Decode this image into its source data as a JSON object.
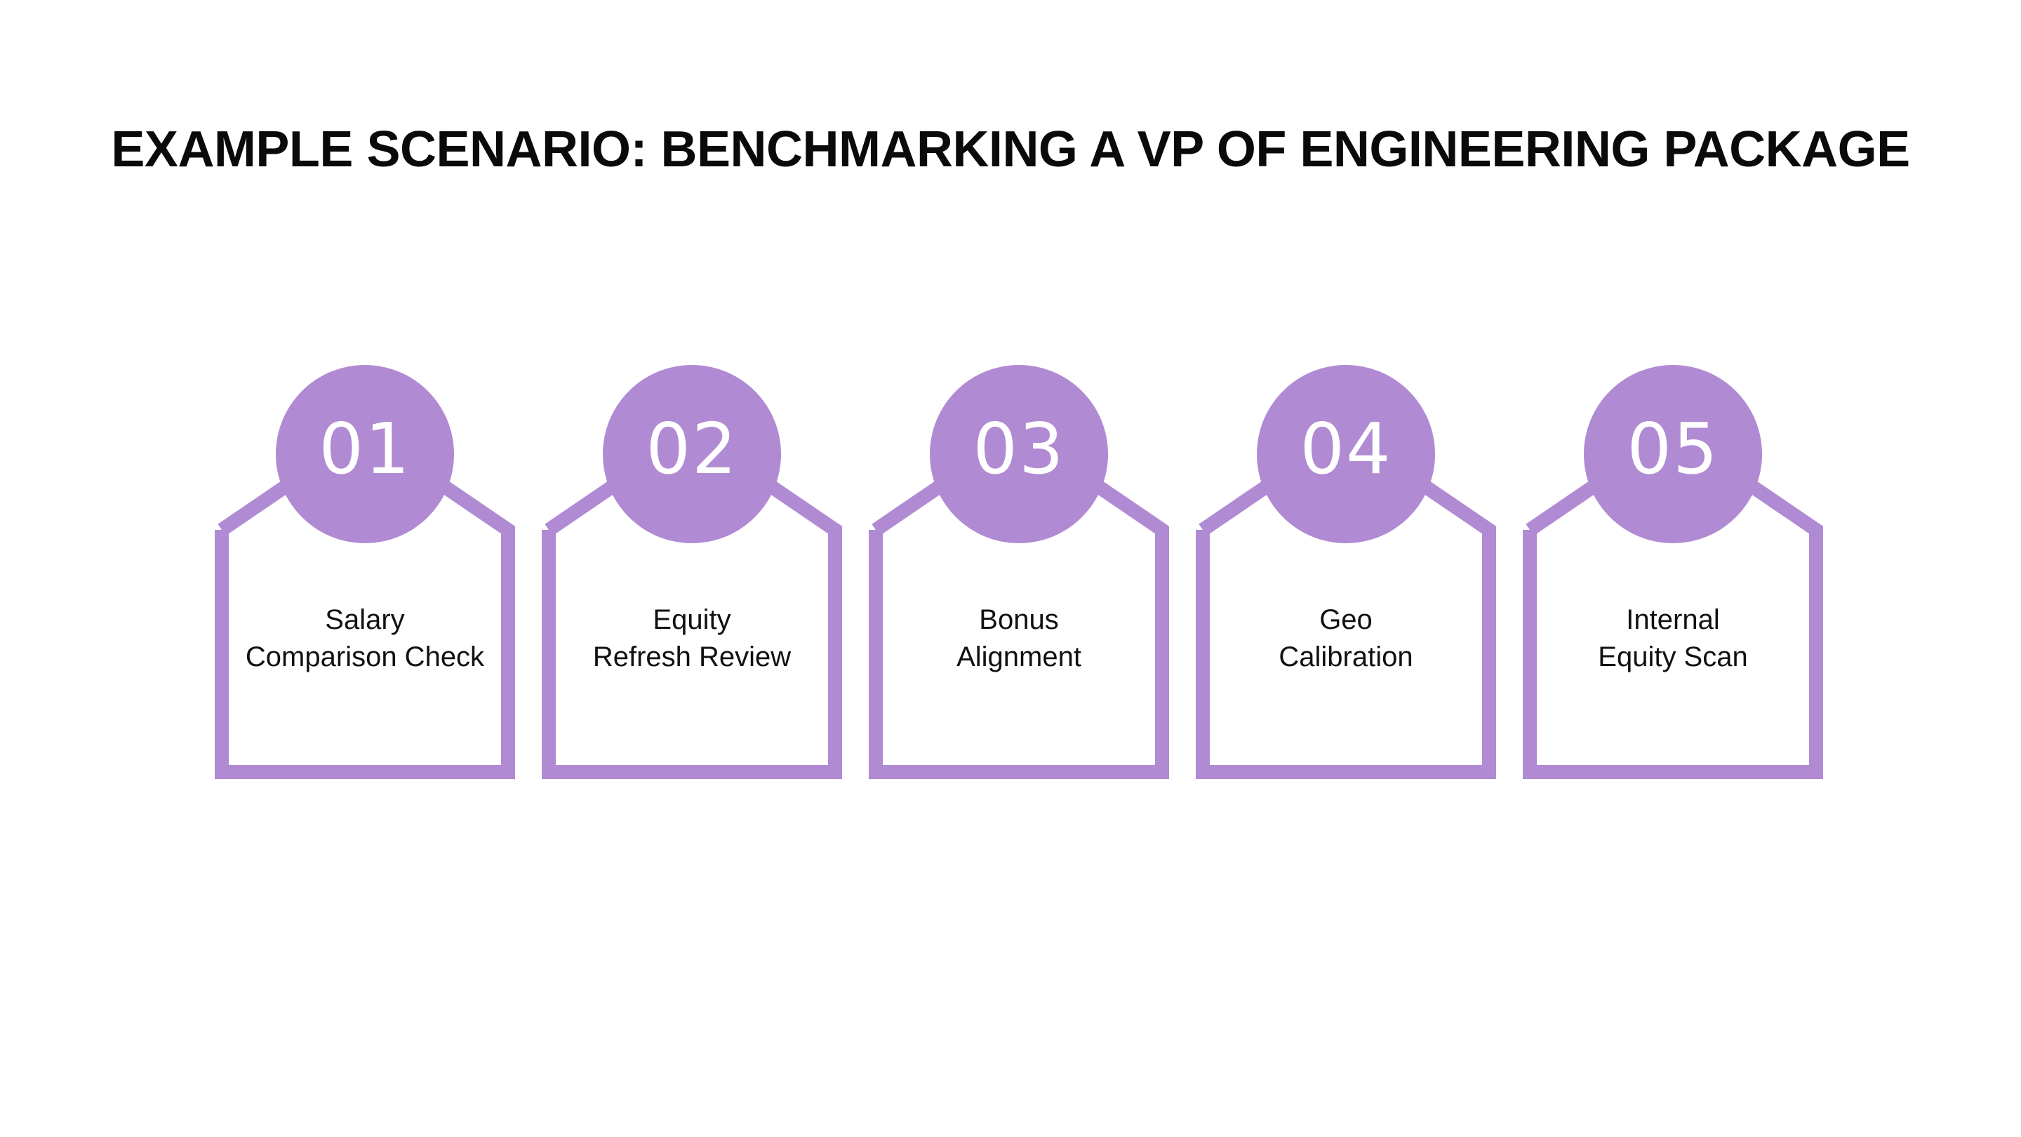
{
  "title": "EXAMPLE SCENARIO: BENCHMARKING A VP OF ENGINEERING PACKAGE",
  "accent_color": "#b08ad2",
  "steps": [
    {
      "number": "01",
      "label_lines": [
        "Salary",
        "Comparison Check"
      ]
    },
    {
      "number": "02",
      "label_lines": [
        "Equity",
        "Refresh Review"
      ]
    },
    {
      "number": "03",
      "label_lines": [
        "Bonus",
        "Alignment"
      ]
    },
    {
      "number": "04",
      "label_lines": [
        "Geo",
        "Calibration"
      ]
    },
    {
      "number": "05",
      "label_lines": [
        "Internal",
        "Equity Scan"
      ]
    }
  ]
}
